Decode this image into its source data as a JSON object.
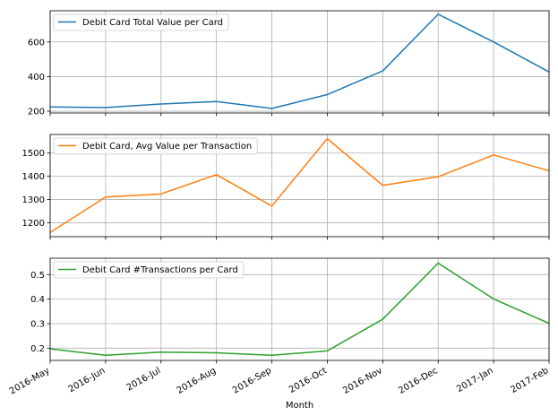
{
  "chart_data": {
    "type": "line",
    "xlabel": "Month",
    "categories": [
      "2016-May",
      "2016-Jun",
      "2016-Jul",
      "2016-Aug",
      "2016-Sep",
      "2016-Oct",
      "2016-Nov",
      "2016-Dec",
      "2017-Jan",
      "2017-Feb"
    ],
    "grid": true,
    "legend_placement": "upper-left",
    "series": [
      {
        "name": "Debit Card Total Value per Card",
        "color": "#1f77b4",
        "values": [
          225,
          221,
          242,
          256,
          216,
          296,
          433,
          760,
          600,
          427
        ],
        "ylim": [
          190,
          780
        ],
        "yticks": [
          200,
          400,
          600
        ],
        "ytick_labels": [
          "200",
          "400",
          "600"
        ]
      },
      {
        "name": "Debit Card, Avg Value per Transaction",
        "color": "#ff7f0e",
        "values": [
          1158,
          1311,
          1324,
          1407,
          1272,
          1562,
          1361,
          1398,
          1492,
          1424
        ],
        "ylim": [
          1140,
          1580
        ],
        "yticks": [
          1200,
          1300,
          1400,
          1500
        ],
        "ytick_labels": [
          "1200",
          "1300",
          "1400",
          "1500"
        ]
      },
      {
        "name": "Debit Card #Transactions per Card",
        "color": "#2ca02c",
        "values": [
          0.197,
          0.171,
          0.184,
          0.181,
          0.171,
          0.189,
          0.318,
          0.547,
          0.401,
          0.301
        ],
        "ylim": [
          0.15,
          0.567
        ],
        "yticks": [
          0.2,
          0.3,
          0.4,
          0.5
        ],
        "ytick_labels": [
          "0.2",
          "0.3",
          "0.4",
          "0.5"
        ]
      }
    ]
  }
}
